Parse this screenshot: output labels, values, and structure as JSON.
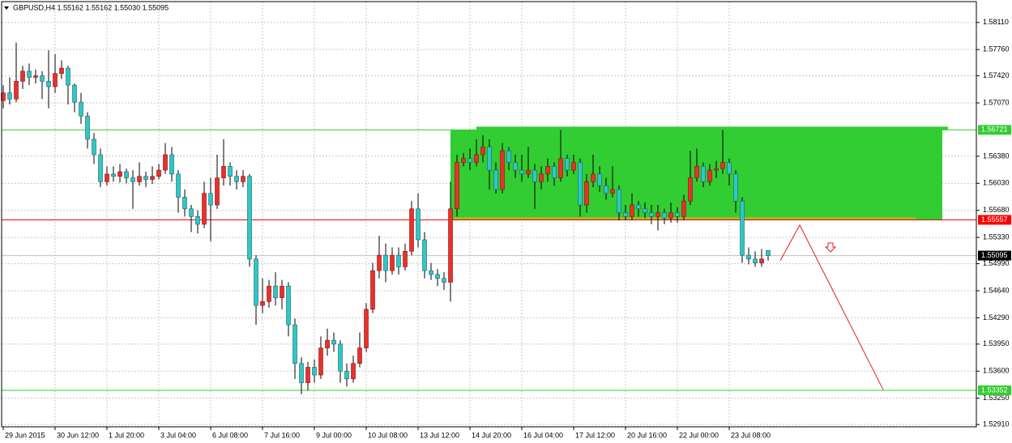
{
  "chart_data": {
    "type": "candlestick",
    "title": "GBPUSD,H4  1.55162 1.55162 1.55030 1.55095",
    "categories": [
      "29 Jun 2015",
      null,
      null,
      null,
      null,
      null,
      null,
      null,
      "30 Jun 12:00",
      null,
      null,
      null,
      null,
      null,
      null,
      null,
      "1 Jul 20:00",
      null,
      null,
      null,
      null,
      null,
      null,
      null,
      "3 Jul 04:00",
      null,
      null,
      null,
      null,
      null,
      null,
      null,
      "6 Jul 08:00",
      null,
      null,
      null,
      null,
      null,
      null,
      null,
      "7 Jul 16:00",
      null,
      null,
      null,
      null,
      null,
      null,
      null,
      "9 Jul 00:00",
      null,
      null,
      null,
      null,
      null,
      null,
      null,
      "10 Jul 08:00",
      null,
      null,
      null,
      null,
      null,
      null,
      null,
      "13 Jul 12:00",
      null,
      null,
      null,
      null,
      null,
      null,
      null,
      "14 Jul 20:00",
      null,
      null,
      null,
      null,
      null,
      null,
      null,
      "16 Jul 04:00",
      null,
      null,
      null,
      null,
      null,
      null,
      null,
      "17 Jul 12:00",
      null,
      null,
      null,
      null,
      null,
      null,
      null,
      "20 Jul 16:00",
      null,
      null,
      null,
      null,
      null,
      null,
      null,
      "22 Jul 00:00",
      null,
      null,
      null,
      null,
      null,
      null,
      null,
      "23 Jul 08:00",
      null,
      null,
      null,
      null,
      null,
      null
    ],
    "open": [
      1.571,
      1.572,
      1.5712,
      1.5735,
      1.5748,
      1.574,
      1.5742,
      1.5735,
      1.5728,
      1.5745,
      1.5752,
      1.573,
      1.5708,
      1.569,
      1.566,
      1.564,
      1.5605,
      1.5615,
      1.5612,
      1.5618,
      1.561,
      1.5605,
      1.5612,
      1.5608,
      1.5612,
      1.562,
      1.564,
      1.5615,
      1.5585,
      1.557,
      1.556,
      1.555,
      1.559,
      1.5575,
      1.561,
      1.5625,
      1.5612,
      1.5605,
      1.5612,
      1.5505,
      1.5445,
      1.545,
      1.547,
      1.5455,
      1.547,
      1.542,
      1.537,
      1.5345,
      1.5365,
      1.5355,
      1.539,
      1.54,
      1.5395,
      1.536,
      1.535,
      1.537,
      1.539,
      1.544,
      1.549,
      1.551,
      1.549,
      1.551,
      1.5495,
      1.5515,
      1.557,
      1.553,
      1.549,
      1.5485,
      1.548,
      1.5475,
      1.557,
      1.563,
      1.5635,
      1.563,
      1.564,
      1.565,
      1.562,
      1.5595,
      1.5645,
      1.563,
      1.562,
      1.5615,
      1.562,
      1.5605,
      1.5615,
      1.5625,
      1.561,
      1.5635,
      1.562,
      1.563,
      1.5575,
      1.5605,
      1.5615,
      1.56,
      1.559,
      1.5595,
      1.5565,
      1.556,
      1.5575,
      1.557,
      1.5565,
      1.556,
      1.5565,
      1.5558,
      1.5565,
      1.556,
      1.558,
      1.561,
      1.5625,
      1.5605,
      1.562,
      1.5622,
      1.563,
      1.5615,
      1.558,
      1.551,
      1.5505,
      1.55,
      1.55162
    ],
    "high": [
      1.573,
      1.574,
      1.5785,
      1.5755,
      1.5758,
      1.575,
      1.5748,
      1.5775,
      1.577,
      1.5762,
      1.5755,
      1.5732,
      1.572,
      1.5695,
      1.5668,
      1.5648,
      1.5625,
      1.5625,
      1.5628,
      1.5622,
      1.562,
      1.563,
      1.5618,
      1.5625,
      1.5628,
      1.5655,
      1.565,
      1.562,
      1.5595,
      1.5575,
      1.5568,
      1.5605,
      1.561,
      1.564,
      1.566,
      1.563,
      1.562,
      1.562,
      1.5615,
      1.551,
      1.548,
      1.5478,
      1.5488,
      1.5478,
      1.5475,
      1.5428,
      1.5378,
      1.5372,
      1.5375,
      1.5405,
      1.5415,
      1.541,
      1.54,
      1.537,
      1.538,
      1.541,
      1.5448,
      1.55,
      1.5535,
      1.5525,
      1.552,
      1.552,
      1.5525,
      1.558,
      1.559,
      1.554,
      1.55,
      1.5492,
      1.5488,
      1.5605,
      1.564,
      1.5642,
      1.5648,
      1.566,
      1.5665,
      1.566,
      1.563,
      1.5655,
      1.565,
      1.564,
      1.564,
      1.565,
      1.5628,
      1.5625,
      1.5635,
      1.563,
      1.5672,
      1.564,
      1.564,
      1.5635,
      1.5615,
      1.564,
      1.5625,
      1.561,
      1.5625,
      1.56,
      1.5575,
      1.559,
      1.558,
      1.5578,
      1.5575,
      1.5575,
      1.557,
      1.5578,
      1.5572,
      1.5588,
      1.5645,
      1.5648,
      1.563,
      1.5628,
      1.5632,
      1.5672,
      1.5635,
      1.562,
      1.5585,
      1.552,
      1.5515,
      1.5518,
      1.55162
    ],
    "low": [
      1.57,
      1.5705,
      1.5708,
      1.5725,
      1.573,
      1.5732,
      1.5712,
      1.57,
      1.572,
      1.5738,
      1.5705,
      1.5695,
      1.568,
      1.5648,
      1.5628,
      1.5598,
      1.56,
      1.5605,
      1.5604,
      1.5603,
      1.557,
      1.56,
      1.5598,
      1.5602,
      1.5608,
      1.5615,
      1.5605,
      1.5565,
      1.556,
      1.554,
      1.5538,
      1.5545,
      1.5528,
      1.557,
      1.56,
      1.56,
      1.5595,
      1.5598,
      1.5495,
      1.542,
      1.5435,
      1.5442,
      1.5445,
      1.544,
      1.5405,
      1.535,
      1.533,
      1.5335,
      1.5345,
      1.535,
      1.538,
      1.5385,
      1.5345,
      1.534,
      1.5345,
      1.5365,
      1.5385,
      1.5435,
      1.548,
      1.5475,
      1.5485,
      1.5485,
      1.549,
      1.551,
      1.552,
      1.548,
      1.5478,
      1.547,
      1.5465,
      1.545,
      1.556,
      1.5625,
      1.562,
      1.5625,
      1.563,
      1.5595,
      1.559,
      1.559,
      1.562,
      1.561,
      1.5605,
      1.561,
      1.557,
      1.5595,
      1.5605,
      1.56,
      1.5605,
      1.5612,
      1.5615,
      1.556,
      1.5565,
      1.5598,
      1.5592,
      1.5582,
      1.5585,
      1.5555,
      1.5555,
      1.5555,
      1.556,
      1.5558,
      1.555,
      1.5542,
      1.555,
      1.5552,
      1.5552,
      1.5555,
      1.5575,
      1.5605,
      1.5598,
      1.56,
      1.561,
      1.5615,
      1.56,
      1.5565,
      1.55,
      1.5498,
      1.5495,
      1.5495,
      1.5503
    ],
    "close": [
      1.572,
      1.5712,
      1.5735,
      1.5748,
      1.574,
      1.5742,
      1.5735,
      1.5728,
      1.5745,
      1.5752,
      1.573,
      1.5708,
      1.569,
      1.566,
      1.564,
      1.5605,
      1.5615,
      1.5612,
      1.5618,
      1.561,
      1.5605,
      1.5612,
      1.5608,
      1.5612,
      1.562,
      1.564,
      1.5615,
      1.5585,
      1.557,
      1.556,
      1.555,
      1.559,
      1.5575,
      1.561,
      1.5625,
      1.5612,
      1.5605,
      1.5612,
      1.5505,
      1.5445,
      1.545,
      1.547,
      1.5455,
      1.547,
      1.542,
      1.537,
      1.5345,
      1.5365,
      1.5355,
      1.539,
      1.54,
      1.5395,
      1.536,
      1.535,
      1.537,
      1.539,
      1.544,
      1.549,
      1.551,
      1.549,
      1.551,
      1.5495,
      1.5515,
      1.557,
      1.553,
      1.549,
      1.5485,
      1.548,
      1.5475,
      1.557,
      1.563,
      1.5635,
      1.563,
      1.564,
      1.565,
      1.562,
      1.5595,
      1.5645,
      1.563,
      1.562,
      1.5615,
      1.562,
      1.5605,
      1.5615,
      1.5625,
      1.561,
      1.5635,
      1.562,
      1.563,
      1.5575,
      1.5605,
      1.5615,
      1.56,
      1.559,
      1.5595,
      1.5565,
      1.556,
      1.5575,
      1.557,
      1.5565,
      1.556,
      1.5565,
      1.5558,
      1.5565,
      1.556,
      1.558,
      1.561,
      1.5625,
      1.5605,
      1.562,
      1.5622,
      1.563,
      1.5615,
      1.558,
      1.551,
      1.5505,
      1.55,
      1.5505,
      1.55095
    ],
    "up_color": "#e8312c",
    "down_color": "#2ec8c8",
    "ylim": [
      1.5288,
      1.5838
    ],
    "yticks": [
      {
        "value": 1.5811,
        "label": "1.58110"
      },
      {
        "value": 1.5776,
        "label": "1.57760"
      },
      {
        "value": 1.5742,
        "label": "1.57420"
      },
      {
        "value": 1.5707,
        "label": "1.57070"
      },
      {
        "value": 1.5638,
        "label": "1.56380"
      },
      {
        "value": 1.5603,
        "label": "1.56030"
      },
      {
        "value": 1.5568,
        "label": "1.55680"
      },
      {
        "value": 1.5533,
        "label": "1.55330"
      },
      {
        "value": 1.5499,
        "label": "1.54990"
      },
      {
        "value": 1.5464,
        "label": "1.54640"
      },
      {
        "value": 1.5429,
        "label": "1.54290"
      },
      {
        "value": 1.5395,
        "label": "1.53950"
      },
      {
        "value": 1.536,
        "label": "1.53600"
      },
      {
        "value": 1.5325,
        "label": "1.53250"
      },
      {
        "value": 1.5291,
        "label": "1.52910"
      }
    ],
    "grid": true,
    "levels": [
      {
        "price": 1.56721,
        "color": "#32cd32"
      },
      {
        "price": 1.55557,
        "color": "#ff0000"
      },
      {
        "price": 1.53352,
        "color": "#32cd32"
      }
    ],
    "zone_color": "#32cd32",
    "last_price_color": "#c0c0c0",
    "forecast_line": {
      "values": [
        1.5503,
        1.5549,
        1.5336
      ],
      "color": "#e02020"
    }
  }
}
